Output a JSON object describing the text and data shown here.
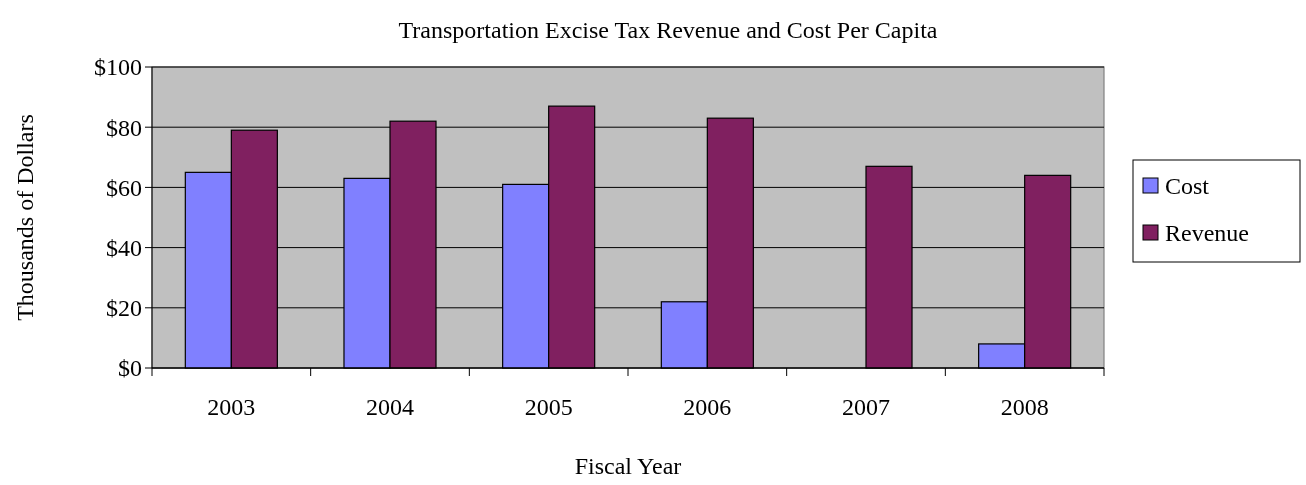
{
  "chart_data": {
    "type": "bar",
    "title": "Transportation Excise Tax Revenue and Cost Per Capita",
    "xlabel": "Fiscal Year",
    "ylabel": "Thousands of Dollars",
    "categories": [
      "2003",
      "2004",
      "2005",
      "2006",
      "2007",
      "2008"
    ],
    "series": [
      {
        "name": "Cost",
        "color": "#8080ff",
        "values": [
          65,
          63,
          61,
          22,
          0,
          8
        ]
      },
      {
        "name": "Revenue",
        "color": "#802060",
        "values": [
          79,
          82,
          87,
          83,
          67,
          64
        ]
      }
    ],
    "ylim": [
      0,
      100
    ],
    "yticks": [
      {
        "value": 0,
        "label": "$0"
      },
      {
        "value": 20,
        "label": "$20"
      },
      {
        "value": 40,
        "label": "$40"
      },
      {
        "value": 60,
        "label": "$60"
      },
      {
        "value": 80,
        "label": "$80"
      },
      {
        "value": 100,
        "label": "$100"
      }
    ],
    "grid": "y",
    "legend": "right"
  }
}
